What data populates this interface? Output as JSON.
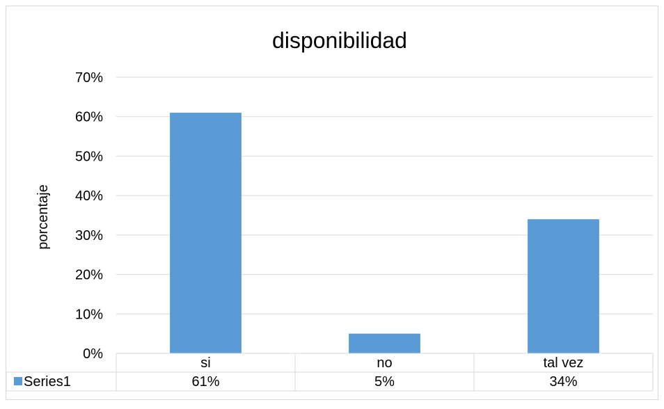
{
  "chart_data": {
    "type": "bar",
    "title": "disponibilidad",
    "xlabel": "",
    "ylabel": "porcentaje",
    "categories": [
      "si",
      "no",
      "tal vez"
    ],
    "series": [
      {
        "name": "Series1",
        "values": [
          61,
          5,
          34
        ],
        "color": "#5b9bd5"
      }
    ],
    "data_table": [
      "61%",
      "5%",
      "34%"
    ],
    "ylim": [
      0,
      70
    ],
    "yticks": [
      0,
      10,
      20,
      30,
      40,
      50,
      60,
      70
    ],
    "ytick_labels": [
      "0%",
      "10%",
      "20%",
      "30%",
      "40%",
      "50%",
      "60%",
      "70%"
    ],
    "grid": true,
    "legend": "data-table-left"
  }
}
